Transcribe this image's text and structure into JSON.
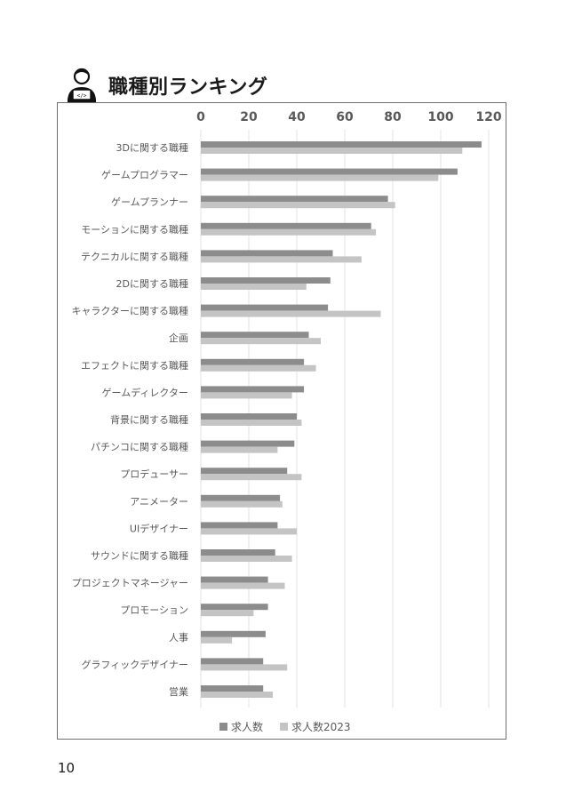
{
  "header": {
    "title": "職種別ランキング",
    "icon": "programmer-person-icon"
  },
  "page": {
    "number": "10"
  },
  "chart_data": {
    "type": "bar",
    "orientation": "horizontal",
    "title": "",
    "xlabel": "",
    "ylabel": "",
    "xlim": [
      0,
      120
    ],
    "xticks": [
      "0",
      "20",
      "40",
      "60",
      "80",
      "100",
      "120"
    ],
    "tick_position": "top",
    "grid": true,
    "legend_position": "bottom",
    "categories": [
      "3Dに関する職種",
      "ゲームプログラマー",
      "ゲームプランナー",
      "モーションに関する職種",
      "テクニカルに関する職種",
      "2Dに関する職種",
      "キャラクターに関する職種",
      "企画",
      "エフェクトに関する職種",
      "ゲームディレクター",
      "背景に関する職種",
      "パチンコに関する職種",
      "プロデューサー",
      "アニメーター",
      "UIデザイナー",
      "サウンドに関する職種",
      "プロジェクトマネージャー",
      "プロモーション",
      "人事",
      "グラフィックデザイナー",
      "営業"
    ],
    "series": [
      {
        "name": "求人数",
        "color": "#8c8c8c",
        "values": [
          117,
          107,
          78,
          71,
          55,
          54,
          53,
          45,
          43,
          43,
          40,
          39,
          36,
          33,
          32,
          31,
          28,
          28,
          27,
          26,
          26
        ]
      },
      {
        "name": "求人数2023",
        "color": "#c4c4c4",
        "values": [
          109,
          99,
          81,
          73,
          67,
          44,
          75,
          50,
          48,
          38,
          42,
          32,
          42,
          34,
          40,
          38,
          35,
          22,
          13,
          36,
          30
        ]
      }
    ]
  }
}
